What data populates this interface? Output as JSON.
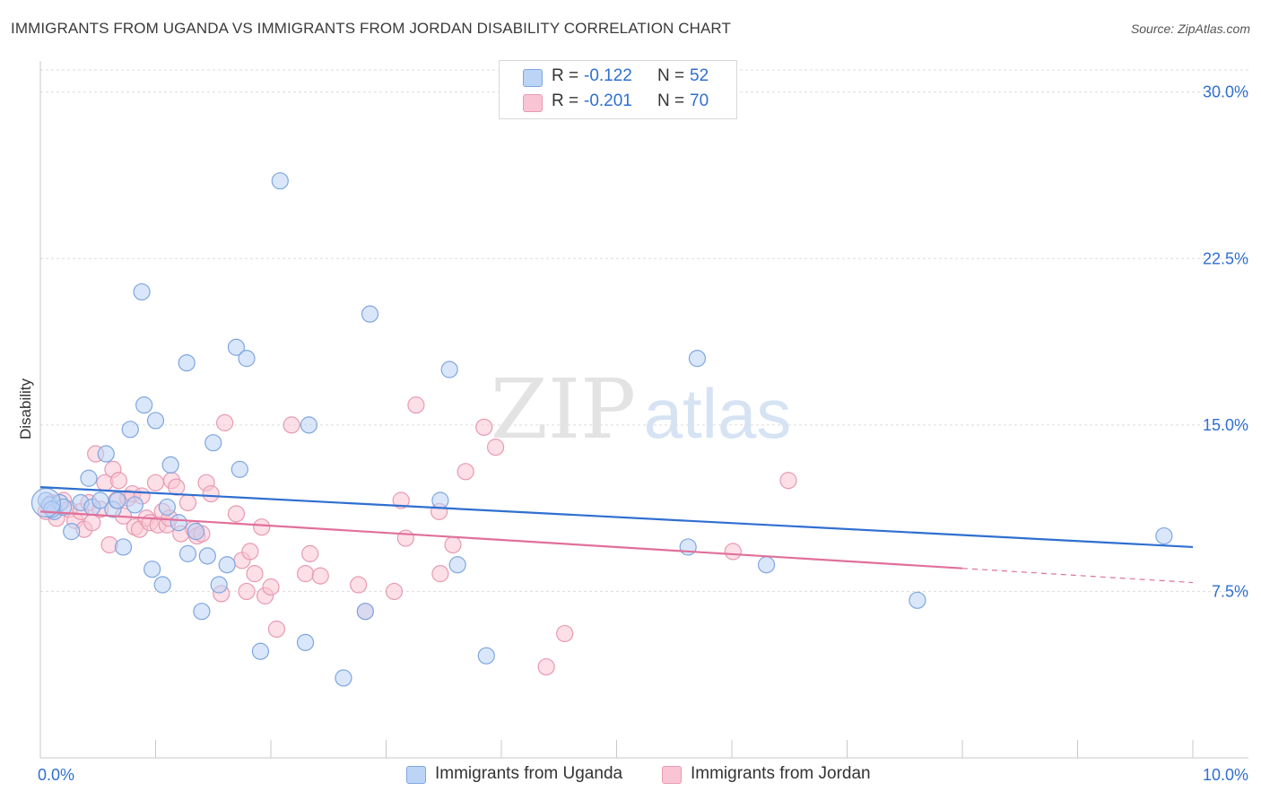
{
  "header": {
    "title": "IMMIGRANTS FROM UGANDA VS IMMIGRANTS FROM JORDAN DISABILITY CORRELATION CHART",
    "source": "Source: ZipAtlas.com"
  },
  "watermark": {
    "zip": "ZIP",
    "atlas": "atlas"
  },
  "legend_top": [
    {
      "r_label": "R =",
      "r_value": "-0.122",
      "n_label": "N =",
      "n_value": "52"
    },
    {
      "r_label": "R =",
      "r_value": "-0.201",
      "n_label": "N =",
      "n_value": "70"
    }
  ],
  "legend_bottom": [
    {
      "label": "Immigrants from Uganda"
    },
    {
      "label": "Immigrants from Jordan"
    }
  ],
  "colors": {
    "blue_fill": "#bcd4f5",
    "blue_stroke": "#7ea6e0",
    "blue_line": "#2f6fd0",
    "pink_fill": "#f9c5d4",
    "pink_stroke": "#e89ab2",
    "pink_line": "#e0709a",
    "tick_label": "#2f6fd0",
    "grid": "#dcdcdc"
  },
  "chart_data": {
    "type": "scatter",
    "title": "IMMIGRANTS FROM UGANDA VS IMMIGRANTS FROM JORDAN DISABILITY CORRELATION CHART",
    "xlabel": "",
    "ylabel": "Disability",
    "xlim": [
      0,
      10
    ],
    "ylim": [
      0,
      31
    ],
    "x_ticks": [
      0,
      10
    ],
    "x_tick_labels": [
      "0.0%",
      "10.0%"
    ],
    "y_ticks": [
      7.5,
      15,
      22.5,
      30
    ],
    "y_tick_labels": [
      "7.5%",
      "15.0%",
      "22.5%",
      "30.0%"
    ],
    "grid": true,
    "legend_position": "top-center",
    "series": [
      {
        "name": "Immigrants from Uganda",
        "color": "#bcd4f5",
        "trend": {
          "x": [
            0,
            10
          ],
          "y": [
            12.2,
            9.5
          ],
          "dashed_from": null
        },
        "points": [
          [
            0.05,
            11.6
          ],
          [
            0.08,
            11.4
          ],
          [
            0.12,
            11.1
          ],
          [
            0.17,
            11.5
          ],
          [
            0.2,
            11.3
          ],
          [
            0.27,
            10.2
          ],
          [
            0.35,
            11.5
          ],
          [
            0.42,
            12.6
          ],
          [
            0.45,
            11.3
          ],
          [
            0.52,
            11.6
          ],
          [
            0.57,
            13.7
          ],
          [
            0.63,
            11.2
          ],
          [
            0.67,
            11.6
          ],
          [
            0.72,
            9.5
          ],
          [
            0.78,
            14.8
          ],
          [
            0.82,
            11.4
          ],
          [
            0.88,
            21.0
          ],
          [
            0.9,
            15.9
          ],
          [
            0.97,
            8.5
          ],
          [
            1.0,
            15.2
          ],
          [
            1.06,
            7.8
          ],
          [
            1.1,
            11.3
          ],
          [
            1.13,
            13.2
          ],
          [
            1.2,
            10.6
          ],
          [
            1.27,
            17.8
          ],
          [
            1.28,
            9.2
          ],
          [
            1.35,
            10.2
          ],
          [
            1.4,
            6.6
          ],
          [
            1.45,
            9.1
          ],
          [
            1.5,
            14.2
          ],
          [
            1.55,
            7.8
          ],
          [
            1.62,
            8.7
          ],
          [
            1.7,
            18.5
          ],
          [
            1.73,
            13.0
          ],
          [
            1.79,
            18.0
          ],
          [
            1.91,
            4.8
          ],
          [
            2.08,
            26.0
          ],
          [
            2.3,
            5.2
          ],
          [
            2.33,
            15.0
          ],
          [
            2.63,
            3.6
          ],
          [
            2.82,
            6.6
          ],
          [
            2.86,
            20.0
          ],
          [
            3.47,
            11.6
          ],
          [
            3.55,
            17.5
          ],
          [
            3.62,
            8.7
          ],
          [
            3.87,
            4.6
          ],
          [
            5.62,
            9.5
          ],
          [
            5.7,
            18.0
          ],
          [
            6.3,
            8.7
          ],
          [
            7.61,
            7.1
          ],
          [
            9.75,
            10.0
          ],
          [
            0.1,
            11.2
          ]
        ]
      },
      {
        "name": "Immigrants from Jordan",
        "color": "#f9c5d4",
        "trend": {
          "x": [
            0,
            10
          ],
          "y": [
            11.1,
            7.9
          ],
          "dashed_from": 8.0
        },
        "points": [
          [
            0.05,
            11.1
          ],
          [
            0.1,
            11.5
          ],
          [
            0.14,
            10.8
          ],
          [
            0.2,
            11.6
          ],
          [
            0.25,
            11.2
          ],
          [
            0.3,
            10.7
          ],
          [
            0.35,
            11.1
          ],
          [
            0.38,
            10.3
          ],
          [
            0.42,
            11.5
          ],
          [
            0.45,
            10.6
          ],
          [
            0.48,
            13.7
          ],
          [
            0.52,
            11.2
          ],
          [
            0.56,
            12.4
          ],
          [
            0.6,
            9.6
          ],
          [
            0.63,
            13.0
          ],
          [
            0.66,
            11.6
          ],
          [
            0.68,
            12.5
          ],
          [
            0.72,
            10.9
          ],
          [
            0.76,
            11.7
          ],
          [
            0.8,
            11.9
          ],
          [
            0.82,
            10.4
          ],
          [
            0.86,
            10.3
          ],
          [
            0.88,
            11.8
          ],
          [
            0.92,
            10.8
          ],
          [
            0.95,
            10.6
          ],
          [
            1.0,
            12.4
          ],
          [
            1.02,
            10.5
          ],
          [
            1.06,
            11.1
          ],
          [
            1.1,
            10.5
          ],
          [
            1.12,
            10.8
          ],
          [
            1.14,
            12.5
          ],
          [
            1.18,
            12.2
          ],
          [
            1.22,
            10.1
          ],
          [
            1.28,
            11.5
          ],
          [
            1.33,
            10.3
          ],
          [
            1.36,
            10.0
          ],
          [
            1.4,
            10.1
          ],
          [
            1.44,
            12.4
          ],
          [
            1.48,
            11.9
          ],
          [
            1.57,
            7.4
          ],
          [
            1.6,
            15.1
          ],
          [
            1.7,
            11.0
          ],
          [
            1.75,
            8.9
          ],
          [
            1.79,
            7.5
          ],
          [
            1.82,
            9.3
          ],
          [
            1.86,
            8.3
          ],
          [
            1.92,
            10.4
          ],
          [
            1.95,
            7.3
          ],
          [
            2.0,
            7.7
          ],
          [
            2.05,
            5.8
          ],
          [
            2.18,
            15.0
          ],
          [
            2.3,
            8.3
          ],
          [
            2.34,
            9.2
          ],
          [
            2.43,
            8.2
          ],
          [
            2.76,
            7.8
          ],
          [
            2.82,
            6.6
          ],
          [
            3.07,
            7.5
          ],
          [
            3.13,
            11.6
          ],
          [
            3.17,
            9.9
          ],
          [
            3.26,
            15.9
          ],
          [
            3.46,
            11.1
          ],
          [
            3.47,
            8.3
          ],
          [
            3.58,
            9.6
          ],
          [
            3.69,
            12.9
          ],
          [
            3.85,
            14.9
          ],
          [
            3.95,
            14.0
          ],
          [
            4.39,
            4.1
          ],
          [
            4.55,
            5.6
          ],
          [
            6.01,
            9.3
          ],
          [
            6.49,
            12.5
          ]
        ]
      }
    ]
  }
}
